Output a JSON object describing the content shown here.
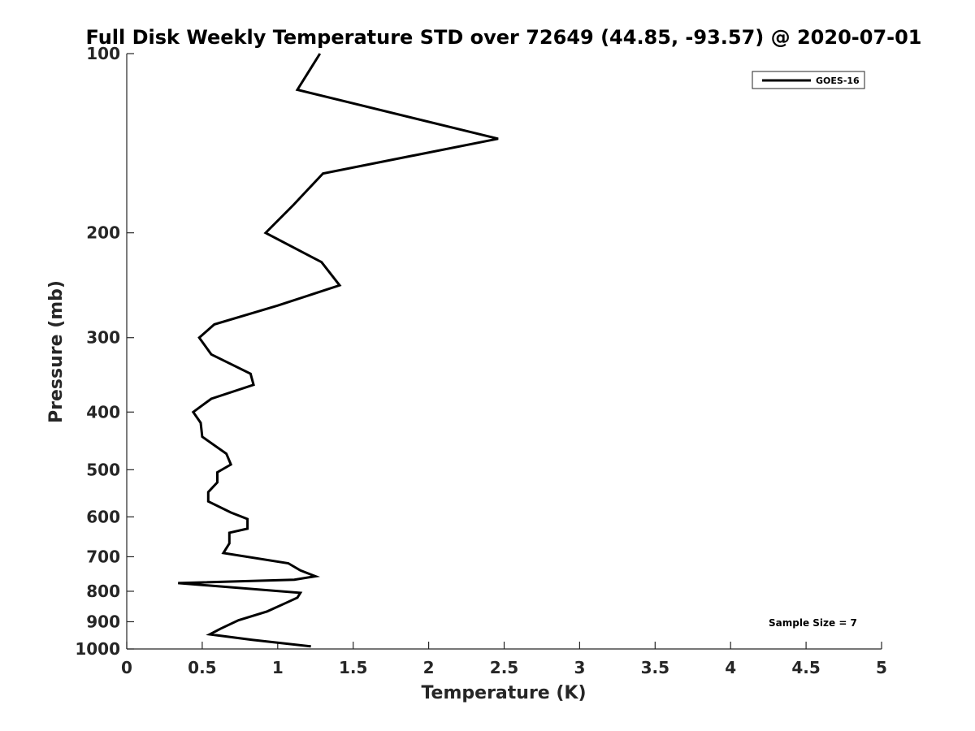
{
  "chart_data": {
    "type": "line",
    "title": "Full Disk Weekly Temperature STD over 72649 (44.85, -93.57) @ 2020-07-01",
    "xlabel": "Temperature (K)",
    "ylabel": "Pressure (mb)",
    "xlim": [
      0,
      5
    ],
    "ylim": [
      100,
      1000
    ],
    "y_scale": "log",
    "y_reversed": true,
    "x_ticks": [
      0,
      0.5,
      1,
      1.5,
      2,
      2.5,
      3,
      3.5,
      4,
      4.5,
      5
    ],
    "x_tick_labels": [
      "0",
      "0.5",
      "1",
      "1.5",
      "2",
      "2.5",
      "3",
      "3.5",
      "4",
      "4.5",
      "5"
    ],
    "y_ticks": [
      100,
      200,
      300,
      400,
      500,
      600,
      700,
      800,
      900,
      1000
    ],
    "y_tick_labels": [
      "100",
      "200",
      "300",
      "400",
      "500",
      "600",
      "700",
      "800",
      "900",
      "1000"
    ],
    "grid": false,
    "legend_position": "top-right",
    "series": [
      {
        "name": "GOES-16",
        "color": "#000000",
        "x": [
          1.28,
          1.13,
          2.46,
          1.3,
          1.1,
          0.92,
          1.29,
          1.41,
          1.0,
          0.58,
          0.48,
          0.56,
          0.82,
          0.84,
          0.56,
          0.44,
          0.49,
          0.5,
          0.66,
          0.69,
          0.6,
          0.6,
          0.54,
          0.54,
          0.69,
          0.8,
          0.8,
          0.68,
          0.68,
          0.64,
          1.07,
          1.15,
          1.25,
          1.11,
          0.34,
          1.15,
          1.13,
          1.05,
          0.93,
          0.74,
          0.62,
          0.55,
          0.83,
          1.22
        ],
        "y": [
          100,
          115,
          139,
          159,
          180,
          200,
          224,
          245,
          265,
          285,
          300,
          320,
          345,
          360,
          380,
          400,
          417,
          440,
          470,
          490,
          505,
          525,
          545,
          565,
          590,
          605,
          628,
          638,
          665,
          690,
          718,
          738,
          755,
          765,
          775,
          805,
          820,
          838,
          865,
          895,
          925,
          945,
          965,
          990
        ]
      }
    ],
    "annotations": [
      "Sample Size = 7"
    ]
  }
}
